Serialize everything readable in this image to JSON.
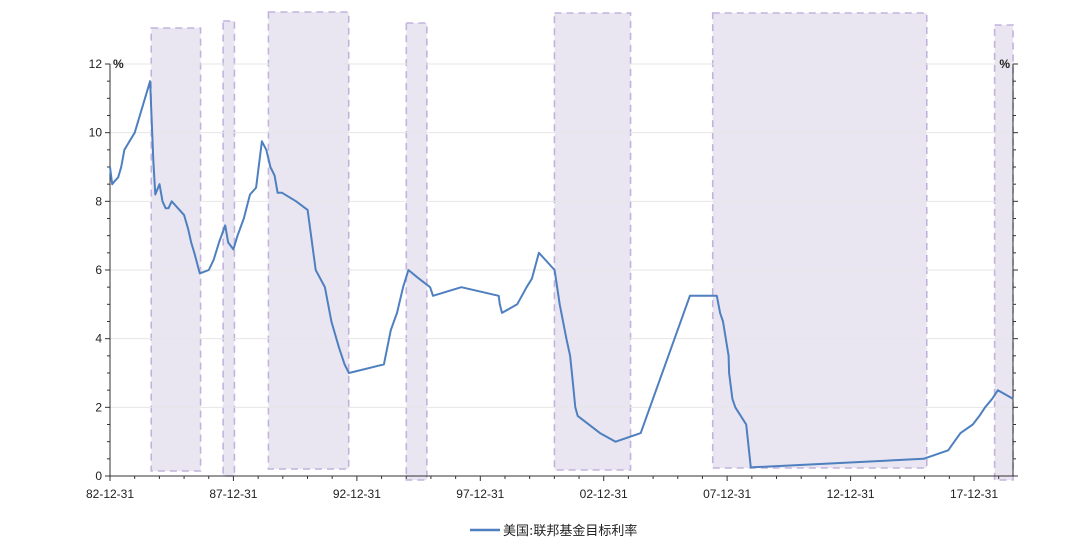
{
  "chart_data": {
    "type": "line",
    "title": "",
    "ylabel_left": "%",
    "ylabel_right": "%",
    "ylim": [
      0,
      12
    ],
    "yticks": [
      0,
      2,
      4,
      6,
      8,
      10,
      12
    ],
    "ytick_labels": [
      "0",
      "2",
      "4",
      "6",
      "8",
      "10",
      "12"
    ],
    "xlim": [
      "1982-12-31",
      "2019-07-31"
    ],
    "xticks": [
      "1982-12-31",
      "1987-12-31",
      "1992-12-31",
      "1997-12-31",
      "2002-12-31",
      "2007-12-31",
      "2012-12-31",
      "2017-12-31"
    ],
    "xtick_labels": [
      "82-12-31",
      "87-12-31",
      "92-12-31",
      "97-12-31",
      "02-12-31",
      "07-12-31",
      "12-12-31",
      "17-12-31"
    ],
    "grid": "horizontal",
    "legend": "bottom-center",
    "shaded_periods": [
      [
        "1984-09-01",
        "1986-09-01"
      ],
      [
        "1987-08-01",
        "1988-01-15"
      ],
      [
        "1989-06-01",
        "1992-09-01"
      ],
      [
        "1995-01-01",
        "1995-11-01"
      ],
      [
        "2001-01-01",
        "2004-02-01"
      ],
      [
        "2007-06-01",
        "2016-02-01"
      ],
      [
        "2018-11-01",
        "2019-08-01"
      ]
    ],
    "series": [
      {
        "name": "美国:联邦基金目标利率",
        "color": "#4e7fbf",
        "x": [
          "1982-12-31",
          "1983-02-01",
          "1983-03-15",
          "1983-05-01",
          "1983-06-15",
          "1983-08-01",
          "1984-01-01",
          "1984-08-15",
          "1984-10-01",
          "1984-11-01",
          "1985-01-01",
          "1985-02-15",
          "1985-04-01",
          "1985-05-15",
          "1985-07-01",
          "1986-01-01",
          "1986-03-01",
          "1986-04-15",
          "1986-06-01",
          "1986-08-20",
          "1987-01-01",
          "1987-03-15",
          "1987-06-01",
          "1987-09-01",
          "1987-10-15",
          "1987-12-31",
          "1988-03-01",
          "1988-06-01",
          "1988-09-01",
          "1988-12-01",
          "1989-02-24",
          "1989-05-01",
          "1989-07-01",
          "1989-09-01",
          "1989-10-15",
          "1989-12-20",
          "1990-07-15",
          "1991-01-01",
          "1991-05-01",
          "1991-09-15",
          "1991-12-20",
          "1992-04-09",
          "1992-07-02",
          "1992-09-04",
          "1994-02-04",
          "1994-05-17",
          "1994-08-16",
          "1994-11-15",
          "1995-02-01",
          "1995-07-06",
          "1995-12-19",
          "1996-01-31",
          "1997-03-25",
          "1998-09-29",
          "1998-10-15",
          "1998-11-17",
          "1999-06-30",
          "1999-11-16",
          "2000-02-02",
          "2000-05-16",
          "2001-01-03",
          "2001-03-20",
          "2001-06-27",
          "2001-08-21",
          "2001-09-17",
          "2001-11-06",
          "2001-12-11",
          "2002-11-06",
          "2003-06-25",
          "2004-06-30",
          "2005-06-30",
          "2006-06-29",
          "2007-08-01",
          "2007-09-18",
          "2007-10-31",
          "2008-01-22",
          "2008-01-30",
          "2008-03-18",
          "2008-04-30",
          "2008-10-08",
          "2008-12-16",
          "2015-12-16",
          "2016-12-14",
          "2017-03-15",
          "2017-06-14",
          "2017-12-13",
          "2018-03-21",
          "2018-06-13",
          "2018-09-26",
          "2018-12-19",
          "2019-07-31"
        ],
        "values": [
          9.0,
          8.5,
          8.6,
          8.7,
          9.0,
          9.5,
          10.0,
          11.5,
          9.2,
          8.2,
          8.5,
          8.0,
          7.8,
          7.8,
          8.0,
          7.6,
          7.2,
          6.8,
          6.5,
          5.9,
          6.0,
          6.3,
          6.8,
          7.3,
          6.8,
          6.6,
          7.0,
          7.5,
          8.2,
          8.4,
          9.75,
          9.5,
          9.0,
          8.75,
          8.25,
          8.25,
          8.0,
          7.75,
          6.0,
          5.5,
          4.5,
          3.75,
          3.25,
          3.0,
          3.25,
          4.25,
          4.75,
          5.5,
          6.0,
          5.75,
          5.5,
          5.25,
          5.5,
          5.25,
          5.0,
          4.75,
          5.0,
          5.5,
          5.75,
          6.5,
          6.0,
          5.0,
          4.0,
          3.5,
          3.0,
          2.0,
          1.75,
          1.25,
          1.0,
          1.25,
          3.25,
          5.25,
          5.25,
          4.75,
          4.5,
          3.5,
          3.0,
          2.25,
          2.0,
          1.5,
          0.25,
          0.5,
          0.75,
          1.0,
          1.25,
          1.5,
          1.75,
          2.0,
          2.25,
          2.5,
          2.25
        ]
      }
    ]
  }
}
